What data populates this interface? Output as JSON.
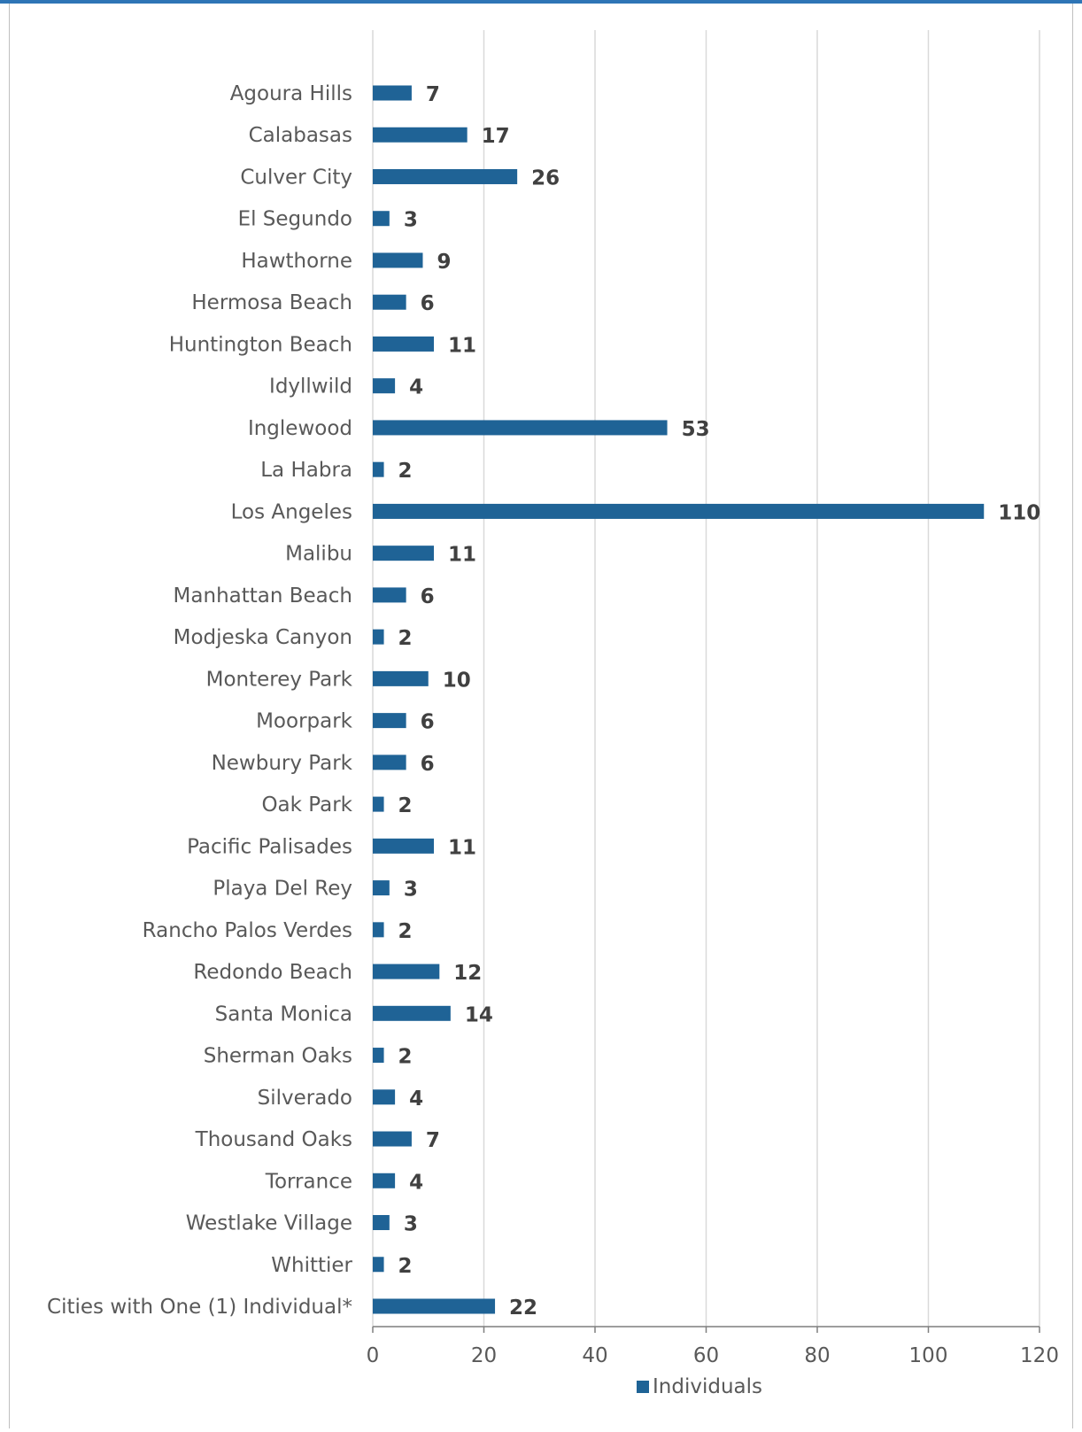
{
  "colors": {
    "bar": "#1f6396",
    "grid": "#d9d9d9",
    "axis": "#7f7f7f",
    "accent_rule": "#2e75b6"
  },
  "chart_data": {
    "type": "bar",
    "orientation": "horizontal",
    "categories": [
      "Agoura Hills",
      "Calabasas",
      "Culver City",
      "El Segundo",
      "Hawthorne",
      "Hermosa Beach",
      "Huntington Beach",
      "Idyllwild",
      "Inglewood",
      "La Habra",
      "Los Angeles",
      "Malibu",
      "Manhattan Beach",
      "Modjeska Canyon",
      "Monterey Park",
      "Moorpark",
      "Newbury Park",
      "Oak Park",
      "Pacific Palisades",
      "Playa Del Rey",
      "Rancho Palos Verdes",
      "Redondo Beach",
      "Santa Monica",
      "Sherman Oaks",
      "Silverado",
      "Thousand Oaks",
      "Torrance",
      "Westlake Village",
      "Whittier",
      "Cities with One (1) Individual*"
    ],
    "series": [
      {
        "name": "Individuals",
        "values": [
          7,
          17,
          26,
          3,
          9,
          6,
          11,
          4,
          53,
          2,
          110,
          11,
          6,
          2,
          10,
          6,
          6,
          2,
          11,
          3,
          2,
          12,
          14,
          2,
          4,
          7,
          4,
          3,
          2,
          22
        ]
      }
    ],
    "xlim": [
      0,
      120
    ],
    "xticks": [
      "0",
      "20",
      "40",
      "60",
      "80",
      "100",
      "120"
    ],
    "grid": true,
    "legend_position": "bottom",
    "data_labels": true
  }
}
